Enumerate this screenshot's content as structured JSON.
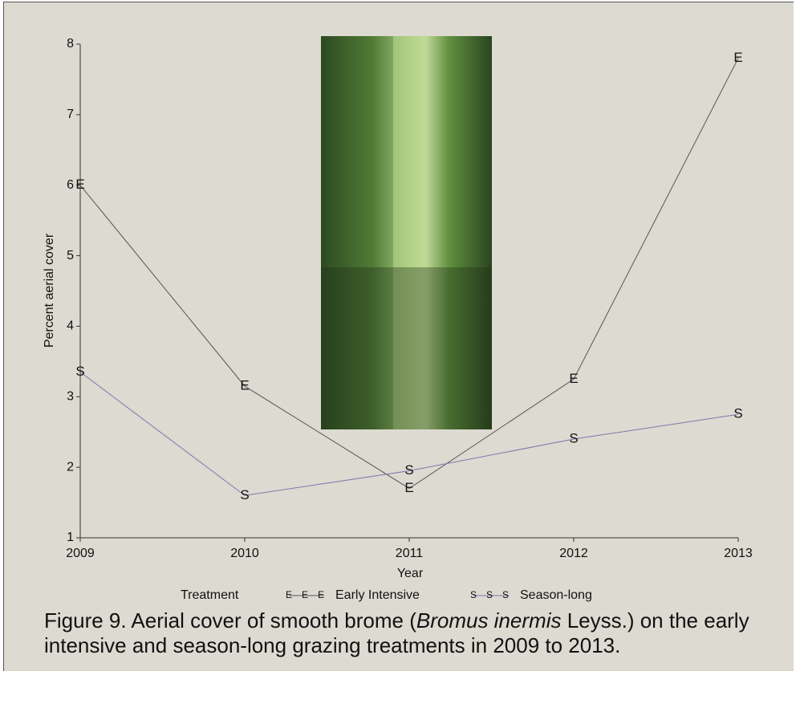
{
  "chart_data": {
    "type": "line",
    "x": [
      2009,
      2010,
      2011,
      2012,
      2013
    ],
    "xlim": [
      2009,
      2013
    ],
    "xticks": [
      2009,
      2010,
      2011,
      2012,
      2013
    ],
    "ylim": [
      1,
      8
    ],
    "yticks": [
      1,
      2,
      3,
      4,
      5,
      6,
      7,
      8
    ],
    "x_label": "Year",
    "y_label": "Percent aerial cover",
    "legend_title": "Treatment",
    "series": [
      {
        "name": "Early Intensive",
        "marker": "E",
        "color": "#222222",
        "line_color": "#555555",
        "values": [
          6.0,
          3.15,
          1.7,
          3.25,
          7.8
        ]
      },
      {
        "name": "Season-long",
        "marker": "S",
        "color": "#4a4a90",
        "line_color": "#7a7aa8",
        "values": [
          3.35,
          1.6,
          1.95,
          2.4,
          2.75
        ]
      }
    ],
    "caption": [
      "Figure 9. Aerial cover of smooth brome (",
      "Bromus inermis",
      " Leyss.) on the early intensive and season-long grazing treatments in 2009 to 2013."
    ]
  }
}
